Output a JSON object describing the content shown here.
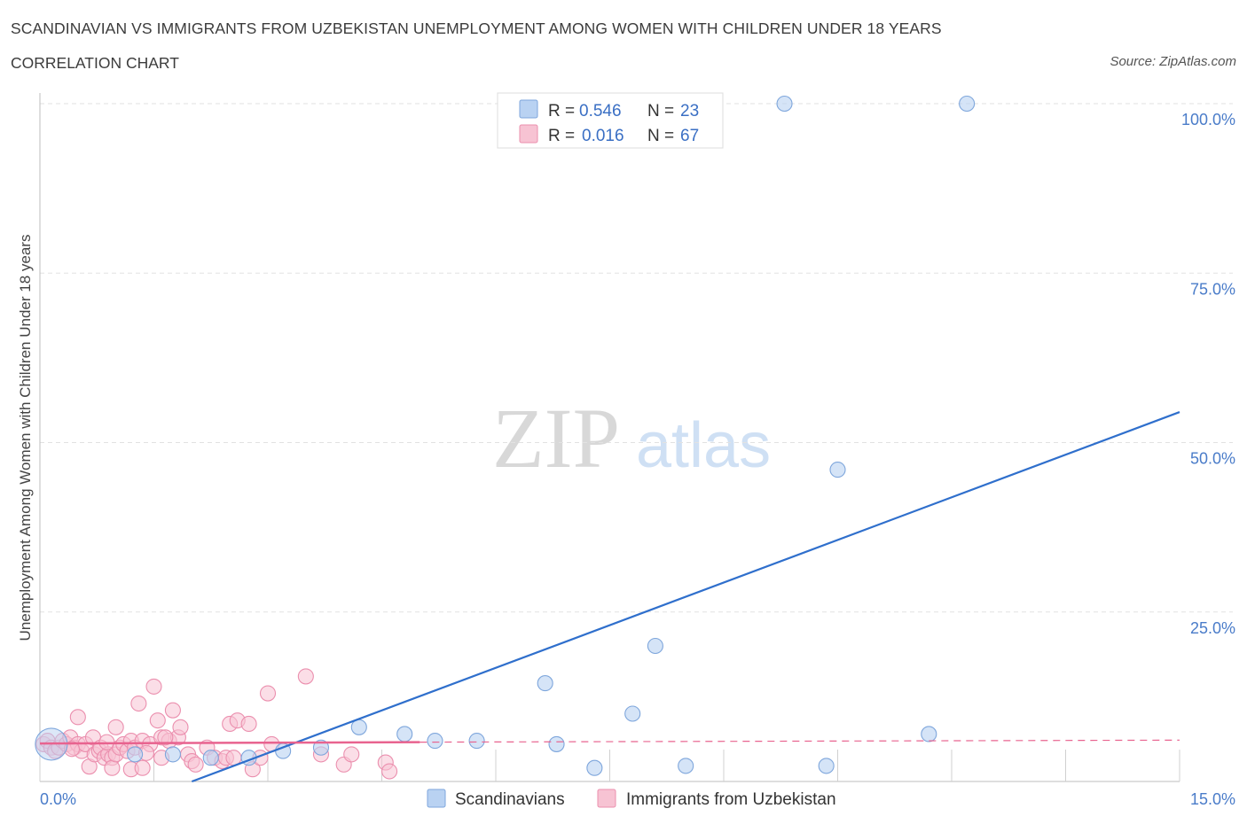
{
  "header": {
    "title": "SCANDINAVIAN VS IMMIGRANTS FROM UZBEKISTAN UNEMPLOYMENT AMONG WOMEN WITH CHILDREN UNDER 18 YEARS",
    "subtitle": "CORRELATION CHART",
    "source": "Source: ZipAtlas.com"
  },
  "watermark": {
    "zip": "ZIP",
    "atlas": "atlas"
  },
  "legend": {
    "r_label": "R =",
    "n_label": "N =",
    "items": [
      {
        "r": "0.546",
        "n": "23"
      },
      {
        "r": "0.016",
        "n": "67"
      }
    ]
  },
  "colors": {
    "scandinavian_fill": "#b9d2f2",
    "scandinavian_stroke": "#7ea6dc",
    "scandinavian_line": "#2f6fcc",
    "uzbek_fill": "#f7c3d3",
    "uzbek_stroke": "#eb8fae",
    "uzbek_line": "#e8638f"
  },
  "chart_data": {
    "type": "scatter",
    "ylabel": "Unemployment Among Women with Children Under 18 years",
    "xlim": [
      0,
      15
    ],
    "ylim": [
      0,
      100
    ],
    "x_tick_labels": [
      "0.0%",
      "15.0%"
    ],
    "y_ticks": [
      {
        "value": 25,
        "label": "25.0%"
      },
      {
        "value": 50,
        "label": "50.0%"
      },
      {
        "value": 75,
        "label": "75.0%"
      },
      {
        "value": 100,
        "label": "100.0%"
      }
    ],
    "grid": true,
    "legend_position": "top-center",
    "series": [
      {
        "name": "Scandinavians",
        "trend": {
          "x": [
            2.0,
            15.0
          ],
          "y": [
            0,
            54.5
          ]
        },
        "points": [
          {
            "x": 0.15,
            "y": 5.5,
            "big": true
          },
          {
            "x": 1.25,
            "y": 4.0
          },
          {
            "x": 1.75,
            "y": 4.0
          },
          {
            "x": 2.25,
            "y": 3.5
          },
          {
            "x": 2.75,
            "y": 3.5
          },
          {
            "x": 3.2,
            "y": 4.5
          },
          {
            "x": 3.7,
            "y": 5.0
          },
          {
            "x": 4.2,
            "y": 8.0
          },
          {
            "x": 4.8,
            "y": 7.0
          },
          {
            "x": 5.2,
            "y": 6.0
          },
          {
            "x": 5.75,
            "y": 6.0
          },
          {
            "x": 6.65,
            "y": 14.5
          },
          {
            "x": 6.8,
            "y": 5.5
          },
          {
            "x": 7.3,
            "y": 2.0
          },
          {
            "x": 7.8,
            "y": 10.0
          },
          {
            "x": 8.1,
            "y": 20.0
          },
          {
            "x": 8.5,
            "y": 2.3
          },
          {
            "x": 9.8,
            "y": 100.0
          },
          {
            "x": 10.5,
            "y": 46.0
          },
          {
            "x": 10.35,
            "y": 2.3
          },
          {
            "x": 11.7,
            "y": 7.0
          },
          {
            "x": 12.2,
            "y": 100.0
          }
        ]
      },
      {
        "name": "Immigrants from Uzbekistan",
        "trend": {
          "x": [
            0.0,
            5.0
          ],
          "y": [
            5.6,
            5.8
          ]
        },
        "trend_dashed": {
          "x": [
            5.0,
            15.0
          ],
          "y": [
            5.8,
            6.1
          ]
        },
        "points": [
          {
            "x": 0.05,
            "y": 5.5
          },
          {
            "x": 0.1,
            "y": 6.0
          },
          {
            "x": 0.15,
            "y": 5.0
          },
          {
            "x": 0.2,
            "y": 4.5
          },
          {
            "x": 0.25,
            "y": 5.0
          },
          {
            "x": 0.3,
            "y": 6.0
          },
          {
            "x": 0.35,
            "y": 5.5
          },
          {
            "x": 0.4,
            "y": 6.5
          },
          {
            "x": 0.45,
            "y": 5.0
          },
          {
            "x": 0.5,
            "y": 5.5
          },
          {
            "x": 0.55,
            "y": 4.5
          },
          {
            "x": 0.5,
            "y": 9.5
          },
          {
            "x": 0.6,
            "y": 5.5
          },
          {
            "x": 0.65,
            "y": 2.2
          },
          {
            "x": 0.7,
            "y": 6.5
          },
          {
            "x": 0.72,
            "y": 4.0
          },
          {
            "x": 0.78,
            "y": 4.5
          },
          {
            "x": 0.8,
            "y": 5.0
          },
          {
            "x": 0.85,
            "y": 3.5
          },
          {
            "x": 0.9,
            "y": 4.0
          },
          {
            "x": 0.95,
            "y": 3.5
          },
          {
            "x": 0.95,
            "y": 2.0
          },
          {
            "x": 1.0,
            "y": 4.0
          },
          {
            "x": 1.05,
            "y": 5.0
          },
          {
            "x": 1.1,
            "y": 5.5
          },
          {
            "x": 1.15,
            "y": 4.5
          },
          {
            "x": 1.0,
            "y": 8.0
          },
          {
            "x": 1.2,
            "y": 6.0
          },
          {
            "x": 1.2,
            "y": 1.8
          },
          {
            "x": 1.25,
            "y": 5.0
          },
          {
            "x": 1.3,
            "y": 11.5
          },
          {
            "x": 1.35,
            "y": 6.0
          },
          {
            "x": 1.35,
            "y": 2.0
          },
          {
            "x": 1.45,
            "y": 5.5
          },
          {
            "x": 1.5,
            "y": 14.0
          },
          {
            "x": 1.55,
            "y": 9.0
          },
          {
            "x": 1.6,
            "y": 6.5
          },
          {
            "x": 1.6,
            "y": 3.5
          },
          {
            "x": 1.7,
            "y": 6.0
          },
          {
            "x": 1.75,
            "y": 10.5
          },
          {
            "x": 1.82,
            "y": 6.5
          },
          {
            "x": 1.85,
            "y": 8.0
          },
          {
            "x": 1.95,
            "y": 4.0
          },
          {
            "x": 2.0,
            "y": 3.0
          },
          {
            "x": 2.05,
            "y": 2.5
          },
          {
            "x": 2.2,
            "y": 5.0
          },
          {
            "x": 2.3,
            "y": 3.5
          },
          {
            "x": 2.4,
            "y": 3.0
          },
          {
            "x": 2.45,
            "y": 3.5
          },
          {
            "x": 2.5,
            "y": 8.5
          },
          {
            "x": 2.55,
            "y": 3.5
          },
          {
            "x": 2.6,
            "y": 9.0
          },
          {
            "x": 2.75,
            "y": 8.5
          },
          {
            "x": 2.8,
            "y": 1.8
          },
          {
            "x": 2.9,
            "y": 3.5
          },
          {
            "x": 3.0,
            "y": 13.0
          },
          {
            "x": 3.05,
            "y": 5.5
          },
          {
            "x": 3.5,
            "y": 15.5
          },
          {
            "x": 3.7,
            "y": 4.0
          },
          {
            "x": 4.0,
            "y": 2.5
          },
          {
            "x": 4.1,
            "y": 4.0
          },
          {
            "x": 4.55,
            "y": 2.8
          },
          {
            "x": 4.6,
            "y": 1.5
          },
          {
            "x": 1.65,
            "y": 6.5
          },
          {
            "x": 0.42,
            "y": 4.8
          },
          {
            "x": 0.88,
            "y": 5.8
          },
          {
            "x": 1.4,
            "y": 4.2
          }
        ]
      }
    ]
  }
}
